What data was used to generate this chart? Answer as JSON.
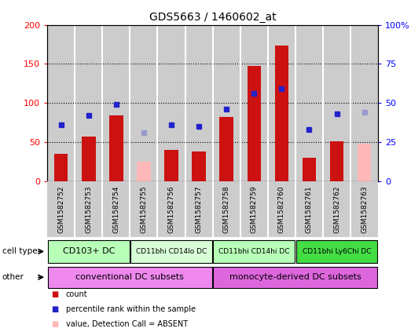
{
  "title": "GDS5663 / 1460602_at",
  "samples": [
    "GSM1582752",
    "GSM1582753",
    "GSM1582754",
    "GSM1582755",
    "GSM1582756",
    "GSM1582757",
    "GSM1582758",
    "GSM1582759",
    "GSM1582760",
    "GSM1582761",
    "GSM1582762",
    "GSM1582763"
  ],
  "count_values": [
    35,
    57,
    84,
    null,
    40,
    38,
    82,
    147,
    174,
    30,
    51,
    null
  ],
  "count_absent": [
    null,
    null,
    null,
    25,
    null,
    null,
    null,
    null,
    null,
    null,
    null,
    48
  ],
  "rank_values": [
    36,
    42,
    49,
    null,
    36,
    35,
    46,
    56,
    59,
    33,
    43,
    null
  ],
  "rank_absent": [
    null,
    null,
    null,
    31,
    null,
    null,
    null,
    null,
    null,
    null,
    null,
    44
  ],
  "absent_mask": [
    false,
    false,
    false,
    true,
    false,
    false,
    false,
    false,
    false,
    false,
    false,
    true
  ],
  "cell_type_groups": [
    {
      "label": "CD103+ DC",
      "start": 0,
      "end": 3,
      "color": "#b8ffb8"
    },
    {
      "label": "CD11bhi CD14lo DC",
      "start": 3,
      "end": 6,
      "color": "#d8ffd8"
    },
    {
      "label": "CD11bhi CD14hi DC",
      "start": 6,
      "end": 9,
      "color": "#b8ffb8"
    },
    {
      "label": "CD11bhi Ly6Chi DC",
      "start": 9,
      "end": 12,
      "color": "#44dd44"
    }
  ],
  "other_groups": [
    {
      "label": "conventional DC subsets",
      "start": 0,
      "end": 6,
      "color": "#ee88ee"
    },
    {
      "label": "monocyte-derived DC subsets",
      "start": 6,
      "end": 12,
      "color": "#dd66dd"
    }
  ],
  "ylim_left": [
    0,
    200
  ],
  "ylim_right": [
    0,
    100
  ],
  "yticks_left": [
    0,
    50,
    100,
    150,
    200
  ],
  "yticks_right": [
    0,
    25,
    50,
    75,
    100
  ],
  "ytick_labels_left": [
    "0",
    "50",
    "100",
    "150",
    "200"
  ],
  "ytick_labels_right": [
    "0",
    "25",
    "50",
    "75",
    "100%"
  ],
  "bar_color_present": "#cc1111",
  "bar_color_absent": "#ffb8b8",
  "rank_color_present": "#2222cc",
  "rank_color_absent": "#9999cc",
  "bg_color": "#cccccc",
  "plot_bg": "white"
}
